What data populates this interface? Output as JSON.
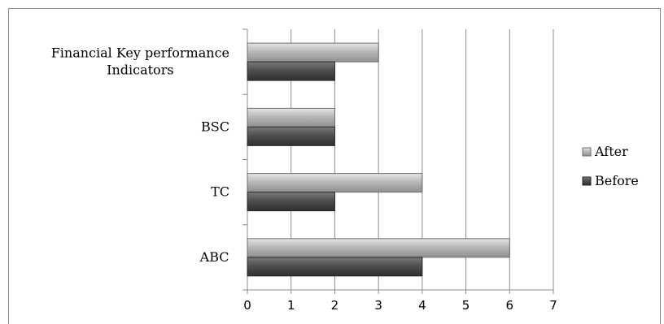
{
  "chart_data": {
    "type": "bar",
    "orientation": "horizontal",
    "categories": [
      "ABC",
      "TC",
      "BSC",
      "Financial Key performance Indicators"
    ],
    "category_label_lines": [
      [
        "ABC"
      ],
      [
        "TC"
      ],
      [
        "BSC"
      ],
      [
        "Financial Key performance",
        "Indicators"
      ]
    ],
    "series": [
      {
        "name": "After",
        "values": [
          6,
          4,
          2,
          3
        ],
        "color": "#a6a6a6"
      },
      {
        "name": "Before",
        "values": [
          4,
          2,
          2,
          2
        ],
        "color": "#4d4d4d"
      }
    ],
    "xlim": [
      0,
      7
    ],
    "x_ticks": [
      0,
      1,
      2,
      3,
      4,
      5,
      6,
      7
    ],
    "grid": "vertical",
    "legend_position": "right",
    "title": "",
    "xlabel": "",
    "ylabel": ""
  }
}
